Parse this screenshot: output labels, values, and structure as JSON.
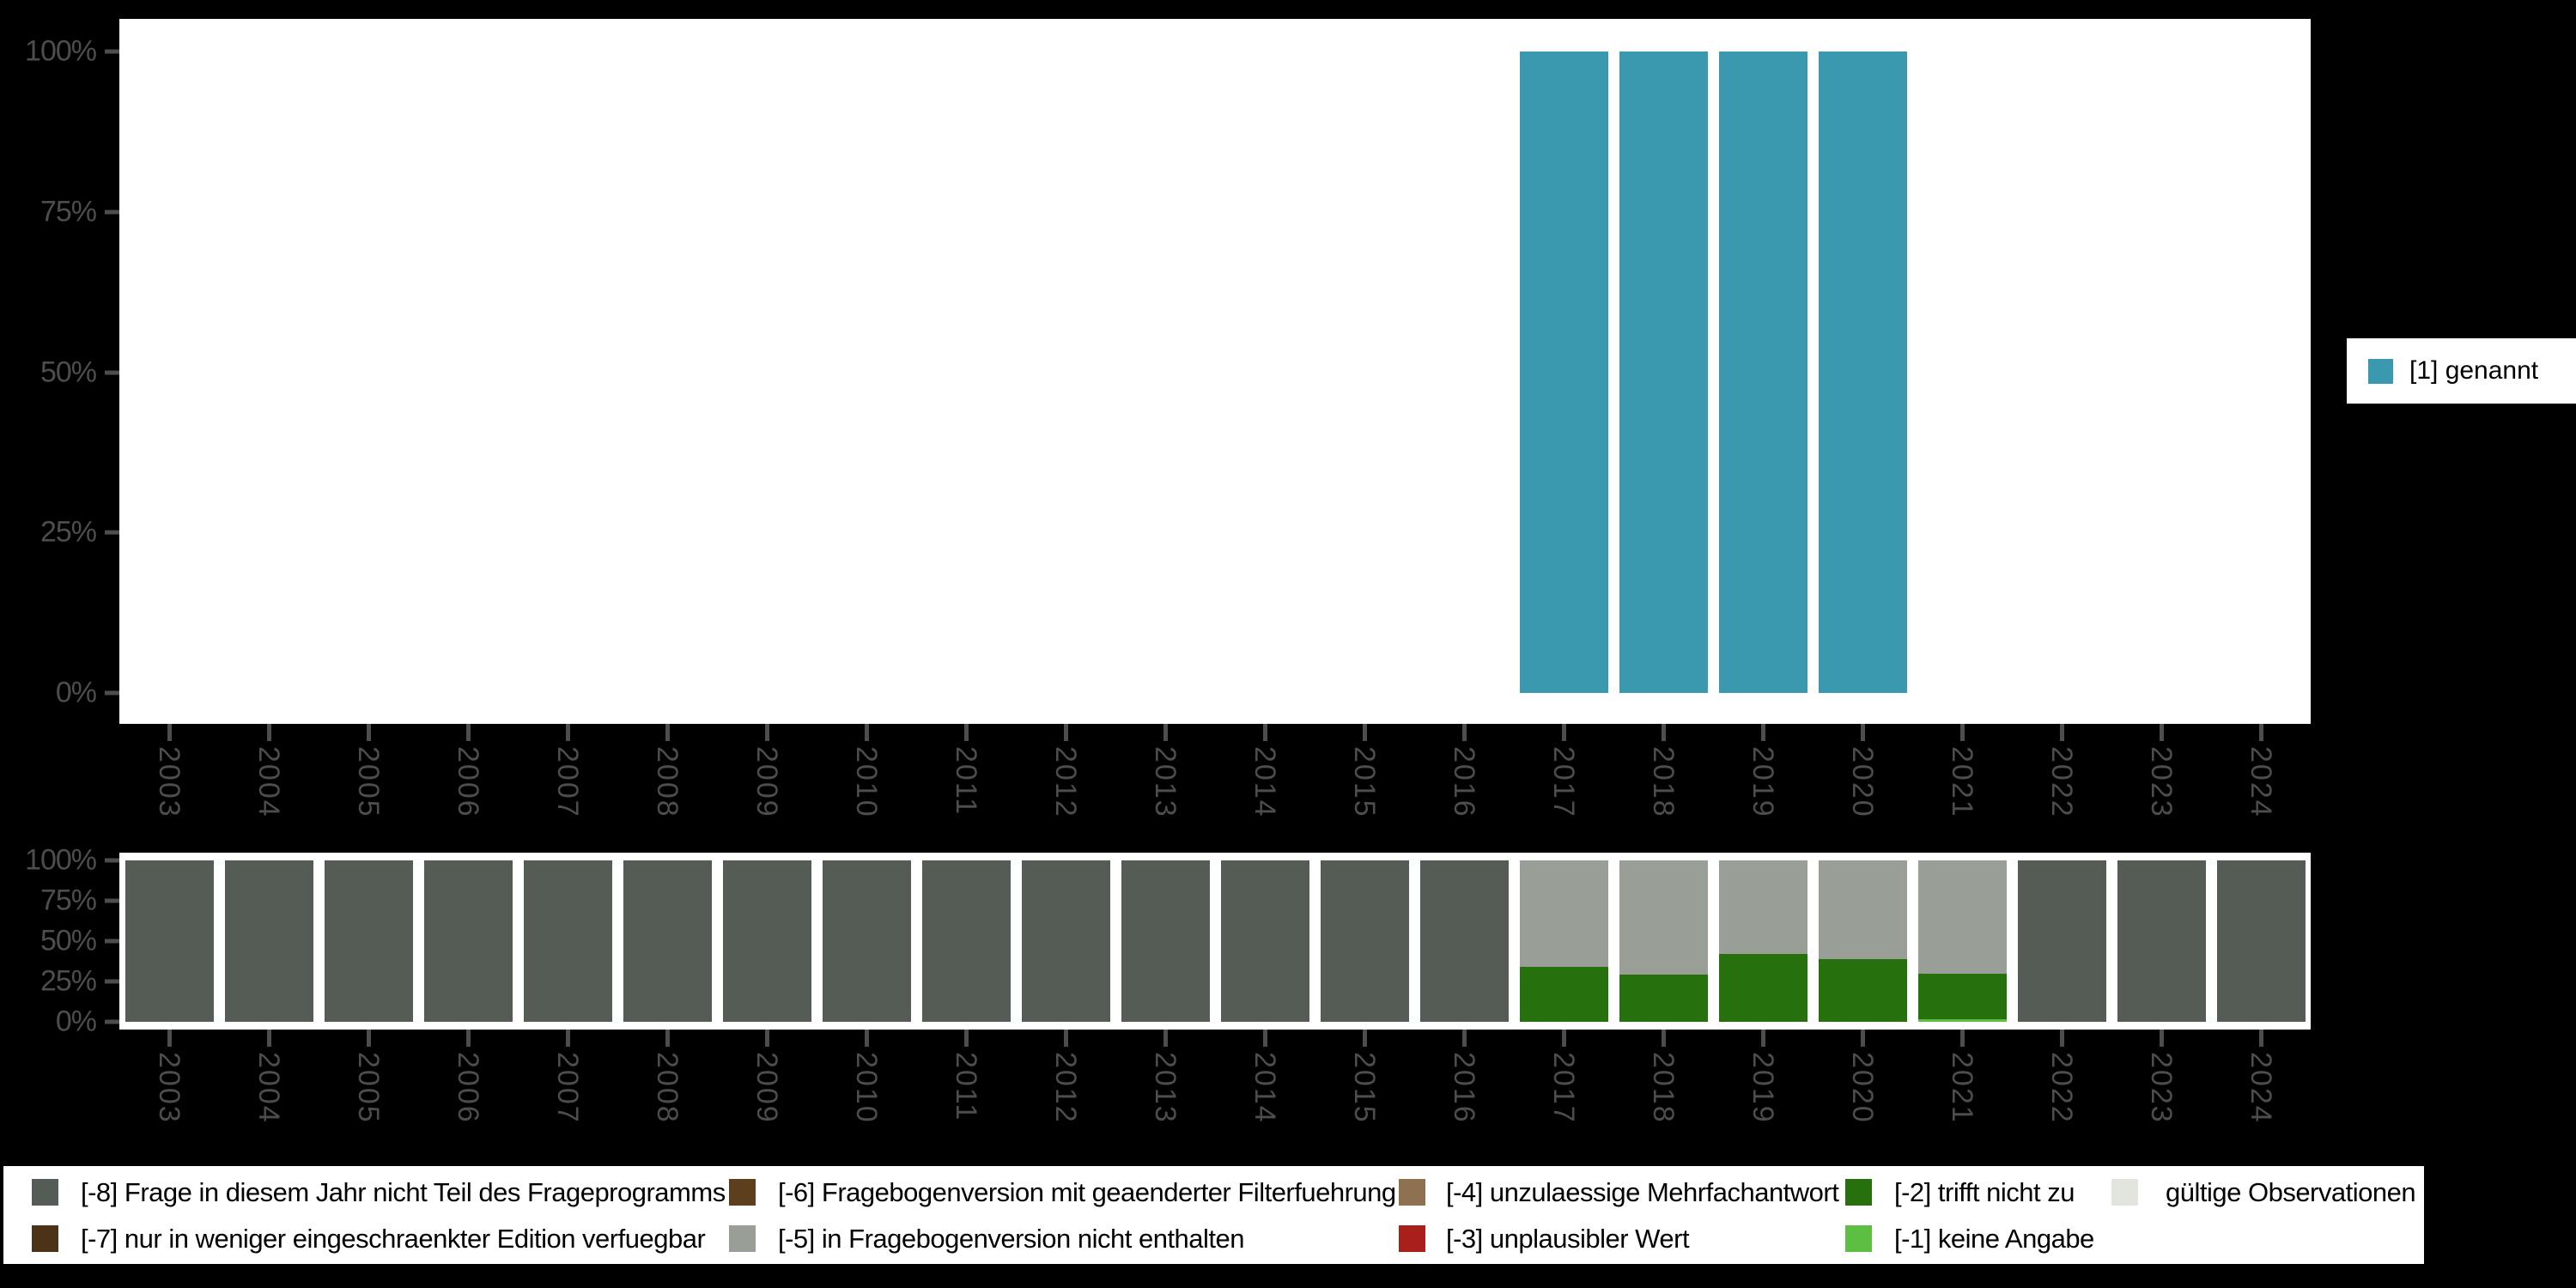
{
  "page": {
    "background": "#000000",
    "panel_background": "#ffffff",
    "axis_text_color": "#4d4d4d"
  },
  "axes": {
    "y_ticks": [
      "100%",
      "75%",
      "50%",
      "25%",
      "0%"
    ],
    "years": [
      "2003",
      "2004",
      "2005",
      "2006",
      "2007",
      "2008",
      "2009",
      "2010",
      "2011",
      "2012",
      "2013",
      "2014",
      "2015",
      "2016",
      "2017",
      "2018",
      "2019",
      "2020",
      "2021",
      "2022",
      "2023",
      "2024"
    ]
  },
  "top_chart": {
    "legend": {
      "label": "[1] genannt",
      "color": "#3a99ae"
    }
  },
  "chart_data": [
    {
      "type": "bar",
      "id": "valid-values-chart",
      "stacked": true,
      "ylim": [
        0,
        100
      ],
      "y_tick_labels": [
        "0%",
        "25%",
        "50%",
        "75%",
        "100%"
      ],
      "legend_position": "right",
      "categories": [
        "2003",
        "2004",
        "2005",
        "2006",
        "2007",
        "2008",
        "2009",
        "2010",
        "2011",
        "2012",
        "2013",
        "2014",
        "2015",
        "2016",
        "2017",
        "2018",
        "2019",
        "2020",
        "2021",
        "2022",
        "2023",
        "2024"
      ],
      "series": [
        {
          "name": "[1] genannt",
          "color": "#3a99ae",
          "values": [
            0,
            0,
            0,
            0,
            0,
            0,
            0,
            0,
            0,
            0,
            0,
            0,
            0,
            0,
            100,
            100,
            100,
            100,
            0,
            0,
            0,
            0
          ]
        }
      ]
    },
    {
      "type": "bar",
      "id": "missing-values-chart",
      "stacked": true,
      "ylim": [
        0,
        100
      ],
      "y_tick_labels": [
        "0%",
        "25%",
        "50%",
        "75%",
        "100%"
      ],
      "legend_position": "bottom",
      "categories": [
        "2003",
        "2004",
        "2005",
        "2006",
        "2007",
        "2008",
        "2009",
        "2010",
        "2011",
        "2012",
        "2013",
        "2014",
        "2015",
        "2016",
        "2017",
        "2018",
        "2019",
        "2020",
        "2021",
        "2022",
        "2023",
        "2024"
      ],
      "series": [
        {
          "name": "[-1] keine Angabe",
          "color": "#5dbf42",
          "values": [
            0,
            0,
            0,
            0,
            0,
            0,
            0,
            0,
            0,
            0,
            0,
            0,
            0,
            0,
            0,
            0,
            0,
            0,
            1.5,
            0,
            0,
            0
          ]
        },
        {
          "name": "[-2] trifft nicht zu",
          "color": "#26710e",
          "values": [
            0,
            0,
            0,
            0,
            0,
            0,
            0,
            0,
            0,
            0,
            0,
            0,
            0,
            0,
            34,
            29,
            42,
            39,
            28.5,
            0,
            0,
            0
          ]
        },
        {
          "name": "[-5] in Fragebogenversion nicht enthalten",
          "color": "#999e96",
          "values": [
            0,
            0,
            0,
            0,
            0,
            0,
            0,
            0,
            0,
            0,
            0,
            0,
            0,
            0,
            66,
            71,
            58,
            61,
            70,
            0,
            0,
            0
          ]
        },
        {
          "name": "[-8] Frage in diesem Jahr nicht Teil des Frageprogramms",
          "color": "#545c55",
          "values": [
            100,
            100,
            100,
            100,
            100,
            100,
            100,
            100,
            100,
            100,
            100,
            100,
            100,
            100,
            0,
            0,
            0,
            0,
            0,
            100,
            100,
            100
          ]
        }
      ]
    }
  ],
  "legend_bottom": {
    "items": [
      {
        "label": "[-8] Frage in diesem Jahr nicht Teil des Frageprogramms",
        "color": "#545c55"
      },
      {
        "label": "[-7] nur in weniger eingeschraenkter Edition verfuegbar",
        "color": "#4c3317"
      },
      {
        "label": "[-6] Fragebogenversion mit geaenderter Filterfuehrung",
        "color": "#5d3f1e"
      },
      {
        "label": "[-5] in Fragebogenversion nicht enthalten",
        "color": "#999e96"
      },
      {
        "label": "[-4] unzulaessige Mehrfachantwort",
        "color": "#8d7150"
      },
      {
        "label": "[-3] unplausibler Wert",
        "color": "#a82019"
      },
      {
        "label": "[-2] trifft nicht zu",
        "color": "#26710e"
      },
      {
        "label": "[-1] keine Angabe",
        "color": "#5dbf42"
      },
      {
        "label": "gültige Observationen",
        "color": "#e1e5de"
      }
    ]
  }
}
